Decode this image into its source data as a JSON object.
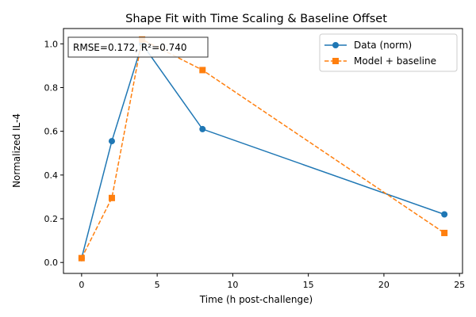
{
  "chart_data": {
    "type": "line",
    "title": "Shape Fit with Time Scaling & Baseline Offset",
    "xlabel": "Time (h post-challenge)",
    "ylabel": "Normalized IL-4",
    "xlim": [
      -1.2,
      25.2
    ],
    "ylim": [
      -0.05,
      1.07
    ],
    "xticks": [
      0,
      5,
      10,
      15,
      20,
      25
    ],
    "yticks": [
      0.0,
      0.2,
      0.4,
      0.6,
      0.8,
      1.0
    ],
    "xtick_labels": [
      "0",
      "5",
      "10",
      "15",
      "20",
      "25"
    ],
    "ytick_labels": [
      "0.0",
      "0.2",
      "0.4",
      "0.6",
      "0.8",
      "1.0"
    ],
    "grid": false,
    "legend_position": "top-right",
    "annotation": "RMSE=0.172, R²=0.740",
    "series": [
      {
        "name": "Data (norm)",
        "color": "#1f77b4",
        "linestyle": "solid",
        "marker": "circle",
        "x": [
          0,
          2,
          4,
          8,
          24
        ],
        "y": [
          0.02,
          0.555,
          1.0,
          0.61,
          0.22
        ]
      },
      {
        "name": "Model + baseline",
        "color": "#ff7f0e",
        "linestyle": "dashed",
        "marker": "square",
        "x": [
          0,
          2,
          4,
          8,
          24
        ],
        "y": [
          0.02,
          0.295,
          1.02,
          0.88,
          0.135
        ]
      }
    ]
  }
}
